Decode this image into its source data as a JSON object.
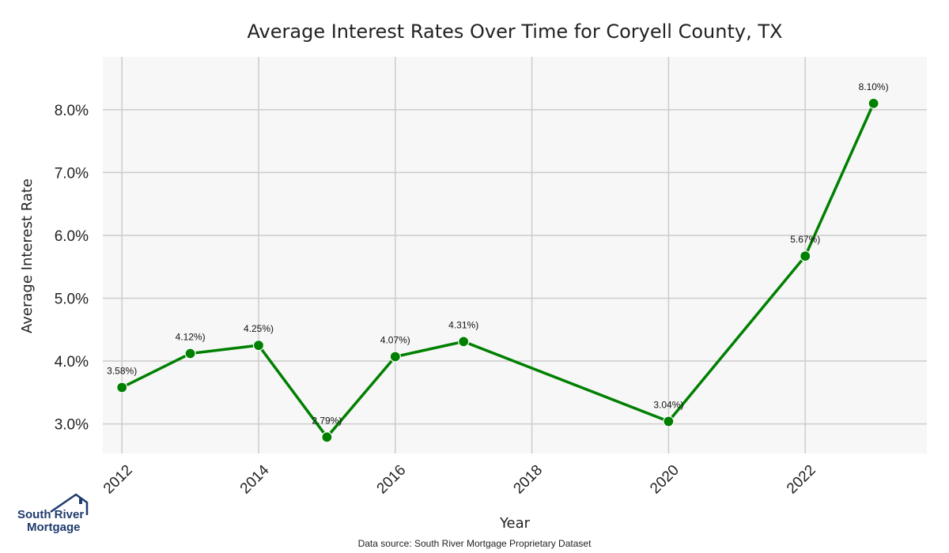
{
  "chart_data": {
    "type": "line",
    "title": "Average Interest Rates Over Time for Coryell County, TX",
    "xlabel": "Year",
    "ylabel": "Average Interest Rate",
    "x": [
      2012,
      2013,
      2014,
      2015,
      2016,
      2017,
      2020,
      2022,
      2023
    ],
    "values": [
      3.58,
      4.12,
      4.25,
      2.79,
      4.07,
      4.31,
      3.04,
      5.67,
      8.1
    ],
    "data_labels": [
      "3.58%)",
      "4.12%)",
      "4.25%)",
      "2.79%)",
      "4.07%)",
      "4.31%)",
      "3.04%)",
      "5.67%)",
      "8.10%)"
    ],
    "xticks": [
      2012,
      2014,
      2016,
      2018,
      2020,
      2022
    ],
    "xtick_labels": [
      "2012",
      "2014",
      "2016",
      "2018",
      "2020",
      "2022"
    ],
    "yticks": [
      3,
      4,
      5,
      6,
      7,
      8
    ],
    "ytick_labels": [
      "3.0%",
      "4.0%",
      "5.0%",
      "6.0%",
      "7.0%",
      "8.0%"
    ],
    "xlim": [
      2011.72,
      2023.78
    ],
    "ylim": [
      2.53,
      8.84
    ],
    "grid": true,
    "line_color": "#008000",
    "background_color": "#f7f7f7",
    "grid_color": "#cccccc"
  },
  "footer": {
    "source": "Data source: South River Mortgage Proprietary Dataset"
  },
  "logo": {
    "line1": "South River",
    "line2": "Mortgage"
  }
}
